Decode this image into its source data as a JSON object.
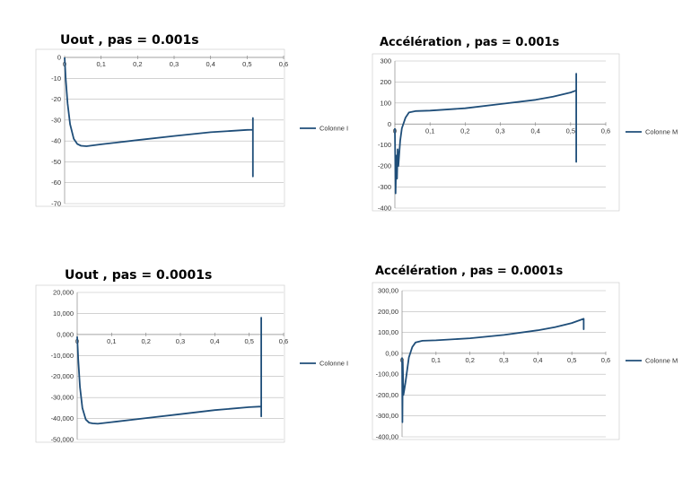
{
  "colors": {
    "line": "#1f4e79",
    "grid": "#b7b7b7",
    "axis": "#8c8c8c"
  },
  "chart_data": [
    {
      "type": "line",
      "title": "Uout  ,  pas = 0.001s",
      "legend": "Colonne I",
      "legend_position": "right",
      "xlim": [
        0,
        0.6
      ],
      "ylim": [
        -70,
        0
      ],
      "x_ticks": [
        0,
        0.1,
        0.2,
        0.3,
        0.4,
        0.5,
        0.6
      ],
      "x_tick_labels": [
        "0",
        "0,1",
        "0,2",
        "0,3",
        "0,4",
        "0,5",
        "0,6"
      ],
      "y_ticks": [
        0,
        -10,
        -20,
        -30,
        -40,
        -50,
        -60,
        -70
      ],
      "y_tick_labels": [
        "0",
        "-10",
        "-20",
        "-30",
        "-40",
        "-50",
        "-60",
        "-70"
      ],
      "series": [
        {
          "name": "Colonne I",
          "x": [
            0,
            0.003,
            0.008,
            0.015,
            0.025,
            0.035,
            0.045,
            0.06,
            0.1,
            0.2,
            0.3,
            0.4,
            0.5,
            0.516,
            0.516,
            0.516,
            0.516
          ],
          "y": [
            0,
            -10,
            -22,
            -32,
            -39,
            -41.5,
            -42.3,
            -42.5,
            -41.6,
            -39.6,
            -37.6,
            -35.8,
            -34.7,
            -34.6,
            -29,
            -57,
            -34.6
          ]
        }
      ]
    },
    {
      "type": "line",
      "title": "Accélération  ,  pas = 0.001s",
      "legend": "Colonne M",
      "legend_position": "right",
      "xlim": [
        0,
        0.6
      ],
      "ylim": [
        -400,
        300
      ],
      "x_ticks": [
        0,
        0.1,
        0.2,
        0.3,
        0.4,
        0.5,
        0.6
      ],
      "x_tick_labels": [
        "0",
        "0,1",
        "0,2",
        "0,3",
        "0,4",
        "0,5",
        "0,6"
      ],
      "y_ticks": [
        300,
        200,
        100,
        0,
        -100,
        -200,
        -300,
        -400
      ],
      "y_tick_labels": [
        "300",
        "200",
        "100",
        "0",
        "-100",
        "-200",
        "-300",
        "-400"
      ],
      "series": [
        {
          "name": "Colonne M",
          "x": [
            0,
            0.002,
            0.004,
            0.006,
            0.008,
            0.01,
            0.015,
            0.02,
            0.03,
            0.04,
            0.06,
            0.1,
            0.2,
            0.3,
            0.4,
            0.45,
            0.5,
            0.516,
            0.516,
            0.516,
            0.516
          ],
          "y": [
            -20,
            -330,
            -150,
            -260,
            -120,
            -200,
            -80,
            -20,
            30,
            55,
            62,
            64,
            75,
            95,
            115,
            130,
            150,
            160,
            240,
            -180,
            150
          ]
        }
      ]
    },
    {
      "type": "line",
      "title": "Uout  ,  pas = 0.0001s",
      "legend": "Colonne I",
      "legend_position": "right",
      "xlim": [
        0,
        0.6
      ],
      "ylim": [
        -50000,
        20000
      ],
      "x_ticks": [
        0,
        0.1,
        0.2,
        0.3,
        0.4,
        0.5,
        0.6
      ],
      "x_tick_labels": [
        "0",
        "0,1",
        "0,2",
        "0,3",
        "0,4",
        "0,5",
        "0,6"
      ],
      "y_ticks": [
        20000,
        10000,
        0,
        -10000,
        -20000,
        -30000,
        -40000,
        -50000
      ],
      "y_tick_labels": [
        "20,000",
        "10,000",
        "0,000",
        "-10,000",
        "-20,000",
        "-30,000",
        "-40,000",
        "-50,000"
      ],
      "series": [
        {
          "name": "Colonne I",
          "x": [
            0,
            0.003,
            0.008,
            0.015,
            0.025,
            0.035,
            0.045,
            0.06,
            0.1,
            0.2,
            0.3,
            0.4,
            0.5,
            0.535,
            0.535,
            0.535,
            0.535
          ],
          "y": [
            -1000,
            -12000,
            -25000,
            -35000,
            -40500,
            -42000,
            -42300,
            -42500,
            -41700,
            -39800,
            -37900,
            -36000,
            -34600,
            -34300,
            8000,
            -39000,
            -34300
          ]
        }
      ]
    },
    {
      "type": "line",
      "title": "Accélération  ,  pas = 0.0001s",
      "legend": "Colonne M",
      "legend_position": "right",
      "xlim": [
        0,
        0.6
      ],
      "ylim": [
        -400,
        300
      ],
      "x_ticks": [
        0,
        0.1,
        0.2,
        0.3,
        0.4,
        0.5,
        0.6
      ],
      "x_tick_labels": [
        "0",
        "0,1",
        "0,2",
        "0,3",
        "0,4",
        "0,5",
        "0,6"
      ],
      "y_ticks": [
        300,
        200,
        100,
        0,
        -100,
        -200,
        -300,
        -400
      ],
      "y_tick_labels": [
        "300,00",
        "200,00",
        "100,00",
        "0,00",
        "-100,00",
        "-200,00",
        "-300,00",
        "-400,00"
      ],
      "series": [
        {
          "name": "Colonne M",
          "x": [
            0,
            0.001,
            0.002,
            0.004,
            0.006,
            0.01,
            0.015,
            0.02,
            0.03,
            0.04,
            0.06,
            0.1,
            0.2,
            0.3,
            0.4,
            0.45,
            0.5,
            0.535,
            0.535,
            0.535
          ],
          "y": [
            -20,
            -330,
            -40,
            -200,
            -180,
            -140,
            -80,
            -20,
            30,
            52,
            60,
            62,
            72,
            88,
            110,
            125,
            145,
            165,
            115,
            165
          ]
        }
      ]
    }
  ]
}
